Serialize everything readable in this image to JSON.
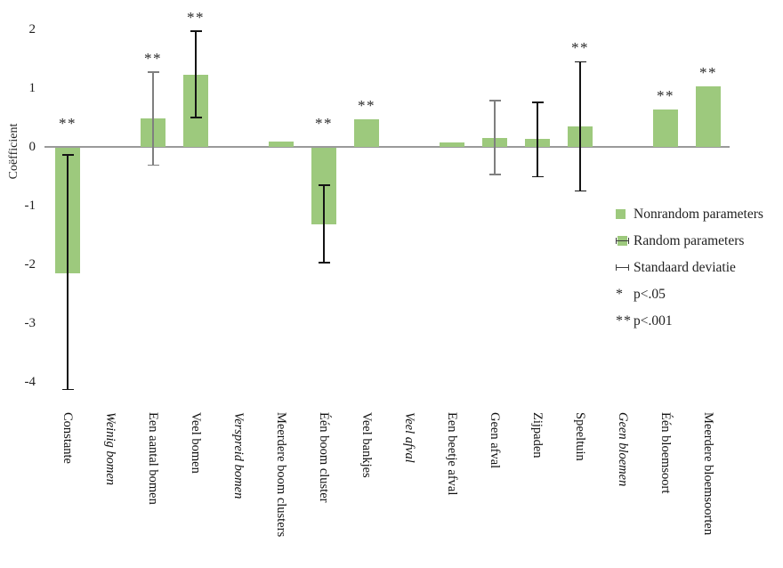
{
  "chart_data": {
    "type": "bar",
    "title": "",
    "xlabel": "",
    "ylabel": "Coëfficient",
    "ylim": [
      -4,
      2
    ],
    "yticks": [
      2,
      1,
      0,
      -1,
      -2,
      -3,
      -4
    ],
    "grid": false,
    "legend_position": "right-middle",
    "bar_color": "#9dc97d",
    "sd_color_black": "#141414",
    "sd_color_gray": "#7f7f7f",
    "axis_color": "#9a9a9a",
    "categories": [
      {
        "label": "Constante",
        "italic": false,
        "value": -2.13,
        "err_low": -4.13,
        "err_high": -0.14,
        "err_style": "black",
        "sig": "**"
      },
      {
        "label": "Weinig bomen",
        "italic": true,
        "value": null
      },
      {
        "label": "Een aantal bomen",
        "italic": false,
        "value": 0.48,
        "err_low": -0.31,
        "err_high": 1.27,
        "err_style": "gray",
        "sig": "**"
      },
      {
        "label": "Veel bomen",
        "italic": false,
        "value": 1.23,
        "err_low": 0.5,
        "err_high": 1.97,
        "err_style": "black",
        "sig": "**"
      },
      {
        "label": "Verspreid bomen",
        "italic": true,
        "value": null
      },
      {
        "label": "Meerdere boom clusters",
        "italic": false,
        "value": 0.09
      },
      {
        "label": "Één boom cluster",
        "italic": false,
        "value": -1.31,
        "err_low": -1.97,
        "err_high": -0.65,
        "err_style": "black",
        "sig": "**"
      },
      {
        "label": "Veel bankjes",
        "italic": false,
        "value": 0.47,
        "sig": "**"
      },
      {
        "label": "Veel afval",
        "italic": true,
        "value": null
      },
      {
        "label": "Een beetje afval",
        "italic": false,
        "value": 0.07
      },
      {
        "label": "Geen afval",
        "italic": false,
        "value": 0.15,
        "err_low": -0.47,
        "err_high": 0.79,
        "err_style": "gray"
      },
      {
        "label": "Zijpaden",
        "italic": false,
        "value": 0.13,
        "err_low": -0.51,
        "err_high": 0.76,
        "err_style": "black"
      },
      {
        "label": "Speeltuin",
        "italic": false,
        "value": 0.35,
        "err_low": -0.75,
        "err_high": 1.45,
        "err_style": "black",
        "sig": "**"
      },
      {
        "label": "Geen bloemen",
        "italic": true,
        "value": null
      },
      {
        "label": "Één bloemsoort",
        "italic": false,
        "value": 0.64,
        "sig": "**"
      },
      {
        "label": "Meerdere bloemsoorten",
        "italic": false,
        "value": 1.03,
        "sig": "**"
      }
    ],
    "legend": {
      "items": [
        {
          "icon": "nonrandom-swatch-icon",
          "label": "Nonrandom parameters"
        },
        {
          "icon": "random-swatch-icon",
          "label": "Random parameters"
        },
        {
          "icon": "error-bar-icon",
          "label": "Standaard deviatie"
        },
        {
          "icon": "single-asterisk-icon",
          "symbol": "*",
          "label": "p<.05"
        },
        {
          "icon": "double-asterisk-icon",
          "symbol": "**",
          "label": "p<.001"
        }
      ]
    }
  }
}
